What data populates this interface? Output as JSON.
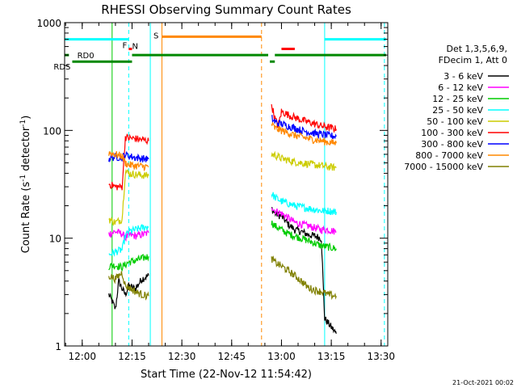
{
  "chart_data": {
    "type": "line",
    "title": "RHESSI Observing Summary Count Rates",
    "xlabel": "Start Time (22-Nov-12 11:54:42)",
    "ylabel_main": "Count Rate (s",
    "ylabel_sup1": "-1",
    "ylabel_mid": " detector",
    "ylabel_sup2": "-1",
    "ylabel_end": ")",
    "yscale": "log",
    "ylim": [
      1,
      1000
    ],
    "xlim": [
      "11:54:42",
      "13:32:00"
    ],
    "x_ticks": [
      "12:00",
      "12:15",
      "12:30",
      "12:45",
      "13:00",
      "13:15",
      "13:30"
    ],
    "y_ticks": [
      "1",
      "10",
      "100",
      "1000"
    ],
    "legend": {
      "placement": "right",
      "header": [
        "Det 1,3,5,6,9,",
        "FDecim 1, Att 0"
      ]
    },
    "series": [
      {
        "name": "3 - 6 keV",
        "color": "#000000",
        "points": [
          [
            "12:08:00",
            3.0
          ],
          [
            "12:09:00",
            2.6
          ],
          [
            "12:10:00",
            2.2
          ],
          [
            "12:11:00",
            4.0
          ],
          [
            "12:12:00",
            3.4
          ],
          [
            "12:13:00",
            3.0
          ],
          [
            "12:14:00",
            3.6
          ],
          [
            "12:16:00",
            3.4
          ],
          [
            "12:18:00",
            4.2
          ],
          [
            "12:20:00",
            4.5
          ],
          [
            "12:57:00",
            19.0
          ],
          [
            "12:58:00",
            17.0
          ],
          [
            "13:00:00",
            16.0
          ],
          [
            "13:02:00",
            13.5
          ],
          [
            "13:04:00",
            12.0
          ],
          [
            "13:06:00",
            11.5
          ],
          [
            "13:08:00",
            10.8
          ],
          [
            "13:10:00",
            10.5
          ],
          [
            "13:12:00",
            10.0
          ],
          [
            "13:13:00",
            1.8
          ],
          [
            "13:15:00",
            1.5
          ],
          [
            "13:16:30",
            1.3
          ]
        ]
      },
      {
        "name": "6 - 12 keV",
        "color": "#ff00ff",
        "points": [
          [
            "12:08:00",
            11.0
          ],
          [
            "12:10:00",
            11.5
          ],
          [
            "12:12:00",
            11.0
          ],
          [
            "12:13:00",
            10.0
          ],
          [
            "12:14:00",
            10.8
          ],
          [
            "12:16:00",
            10.5
          ],
          [
            "12:18:00",
            10.8
          ],
          [
            "12:20:00",
            11.2
          ],
          [
            "12:57:00",
            20.0
          ],
          [
            "12:58:00",
            18.0
          ],
          [
            "13:00:00",
            17.0
          ],
          [
            "13:02:00",
            15.5
          ],
          [
            "13:04:00",
            14.0
          ],
          [
            "13:06:00",
            13.5
          ],
          [
            "13:08:00",
            13.0
          ],
          [
            "13:10:00",
            12.5
          ],
          [
            "13:12:00",
            12.0
          ],
          [
            "13:14:00",
            12.0
          ],
          [
            "13:16:30",
            11.5
          ]
        ]
      },
      {
        "name": "12 - 25 keV",
        "color": "#00cc00",
        "points": [
          [
            "12:08:00",
            5.5
          ],
          [
            "12:10:00",
            5.6
          ],
          [
            "12:12:00",
            5.4
          ],
          [
            "12:14:00",
            6.0
          ],
          [
            "12:16:00",
            6.2
          ],
          [
            "12:18:00",
            6.5
          ],
          [
            "12:20:00",
            6.8
          ],
          [
            "12:57:00",
            14.0
          ],
          [
            "12:58:00",
            13.0
          ],
          [
            "13:00:00",
            12.0
          ],
          [
            "13:02:00",
            11.0
          ],
          [
            "13:04:00",
            10.5
          ],
          [
            "13:06:00",
            10.0
          ],
          [
            "13:08:00",
            9.5
          ],
          [
            "13:10:00",
            9.0
          ],
          [
            "13:12:00",
            8.5
          ],
          [
            "13:14:00",
            8.3
          ],
          [
            "13:16:30",
            8.0
          ]
        ]
      },
      {
        "name": "25 - 50 keV",
        "color": "#00ffff",
        "points": [
          [
            "12:08:00",
            7.0
          ],
          [
            "12:10:00",
            7.5
          ],
          [
            "12:12:00",
            7.8
          ],
          [
            "12:13:00",
            10.5
          ],
          [
            "12:14:00",
            11.5
          ],
          [
            "12:16:00",
            12.0
          ],
          [
            "12:18:00",
            12.5
          ],
          [
            "12:20:00",
            12.8
          ],
          [
            "12:57:00",
            26.0
          ],
          [
            "12:58:00",
            24.0
          ],
          [
            "13:00:00",
            22.0
          ],
          [
            "13:02:00",
            21.0
          ],
          [
            "13:04:00",
            20.0
          ],
          [
            "13:06:00",
            19.5
          ],
          [
            "13:08:00",
            19.0
          ],
          [
            "13:10:00",
            18.5
          ],
          [
            "13:12:00",
            18.0
          ],
          [
            "13:14:00",
            18.0
          ],
          [
            "13:16:30",
            17.5
          ]
        ]
      },
      {
        "name": "50 - 100 keV",
        "color": "#cccc00",
        "points": [
          [
            "12:08:00",
            15.0
          ],
          [
            "12:10:00",
            14.0
          ],
          [
            "12:12:00",
            15.0
          ],
          [
            "12:13:00",
            42.0
          ],
          [
            "12:14:00",
            40.0
          ],
          [
            "12:16:00",
            39.0
          ],
          [
            "12:18:00",
            38.5
          ],
          [
            "12:20:00",
            38.0
          ],
          [
            "12:57:00",
            60.0
          ],
          [
            "12:58:00",
            59.0
          ],
          [
            "13:00:00",
            55.0
          ],
          [
            "13:02:00",
            53.0
          ],
          [
            "13:04:00",
            51.0
          ],
          [
            "13:06:00",
            50.0
          ],
          [
            "13:08:00",
            49.0
          ],
          [
            "13:10:00",
            48.0
          ],
          [
            "13:12:00",
            47.0
          ],
          [
            "13:14:00",
            46.0
          ],
          [
            "13:16:30",
            45.0
          ]
        ]
      },
      {
        "name": "100 - 300 keV",
        "color": "#ff0000",
        "points": [
          [
            "12:08:00",
            32.0
          ],
          [
            "12:10:00",
            30.0
          ],
          [
            "12:12:00",
            30.0
          ],
          [
            "12:13:00",
            87.0
          ],
          [
            "12:14:00",
            85.0
          ],
          [
            "12:16:00",
            84.0
          ],
          [
            "12:18:00",
            82.0
          ],
          [
            "12:20:00",
            80.0
          ],
          [
            "12:57:00",
            175.0
          ],
          [
            "12:58:00",
            130.0
          ],
          [
            "12:59:00",
            110.0
          ],
          [
            "13:00:00",
            150.0
          ],
          [
            "13:02:00",
            140.0
          ],
          [
            "13:04:00",
            132.0
          ],
          [
            "13:06:00",
            125.0
          ],
          [
            "13:08:00",
            120.0
          ],
          [
            "13:10:00",
            115.0
          ],
          [
            "13:12:00",
            110.0
          ],
          [
            "13:14:00",
            107.0
          ],
          [
            "13:16:30",
            103.0
          ]
        ]
      },
      {
        "name": "300 - 800 keV",
        "color": "#0000ff",
        "points": [
          [
            "12:08:00",
            55.0
          ],
          [
            "12:10:00",
            57.0
          ],
          [
            "12:12:00",
            56.0
          ],
          [
            "12:13:00",
            60.0
          ],
          [
            "12:14:00",
            58.0
          ],
          [
            "12:16:00",
            56.0
          ],
          [
            "12:18:00",
            55.0
          ],
          [
            "12:20:00",
            54.0
          ],
          [
            "12:57:00",
            130.0
          ],
          [
            "12:58:00",
            120.0
          ],
          [
            "13:00:00",
            115.0
          ],
          [
            "13:02:00",
            110.0
          ],
          [
            "13:04:00",
            105.0
          ],
          [
            "13:06:00",
            100.0
          ],
          [
            "13:08:00",
            97.0
          ],
          [
            "13:10:00",
            94.0
          ],
          [
            "13:12:00",
            92.0
          ],
          [
            "13:14:00",
            90.0
          ],
          [
            "13:16:30",
            88.0
          ]
        ]
      },
      {
        "name": "800 - 7000 keV",
        "color": "#ff8800",
        "points": [
          [
            "12:08:00",
            62.0
          ],
          [
            "12:10:00",
            60.0
          ],
          [
            "12:12:00",
            58.0
          ],
          [
            "12:13:00",
            50.0
          ],
          [
            "12:14:00",
            48.0
          ],
          [
            "12:16:00",
            47.0
          ],
          [
            "12:18:00",
            46.5
          ],
          [
            "12:20:00",
            46.0
          ],
          [
            "12:57:00",
            115.0
          ],
          [
            "12:58:00",
            105.0
          ],
          [
            "13:00:00",
            100.0
          ],
          [
            "13:02:00",
            95.0
          ],
          [
            "13:04:00",
            90.0
          ],
          [
            "13:06:00",
            87.0
          ],
          [
            "13:08:00",
            84.0
          ],
          [
            "13:10:00",
            82.0
          ],
          [
            "13:12:00",
            80.0
          ],
          [
            "13:14:00",
            78.0
          ],
          [
            "13:16:30",
            76.0
          ]
        ]
      },
      {
        "name": "7000 - 15000 keV",
        "color": "#808000",
        "points": [
          [
            "12:08:00",
            4.5
          ],
          [
            "12:10:00",
            4.2
          ],
          [
            "12:12:00",
            4.8
          ],
          [
            "12:13:00",
            3.6
          ],
          [
            "12:14:00",
            3.5
          ],
          [
            "12:16:00",
            3.2
          ],
          [
            "12:18:00",
            3.0
          ],
          [
            "12:20:00",
            2.9
          ],
          [
            "12:57:00",
            6.5
          ],
          [
            "12:58:00",
            6.0
          ],
          [
            "13:00:00",
            5.5
          ],
          [
            "13:02:00",
            5.0
          ],
          [
            "13:04:00",
            4.5
          ],
          [
            "13:06:00",
            4.0
          ],
          [
            "13:08:00",
            3.5
          ],
          [
            "13:10:00",
            3.3
          ],
          [
            "13:12:00",
            3.2
          ],
          [
            "13:14:00",
            3.0
          ],
          [
            "13:16:30",
            2.9
          ]
        ]
      }
    ],
    "flag_bars": [
      {
        "label": "N",
        "color": "#00ffff",
        "y": 700,
        "segments": [
          [
            "11:54:42",
            "12:14:00"
          ],
          [
            "13:13:00",
            "13:31:30"
          ]
        ]
      },
      {
        "label": "S",
        "color": "#ff8800",
        "y": 740,
        "segments": [
          [
            "12:24:00",
            "12:54:00"
          ]
        ]
      },
      {
        "label": "F",
        "color": "#ff0000",
        "y": 570,
        "segments": [
          [
            "12:14:00",
            "12:15:00"
          ],
          [
            "13:00:00",
            "13:04:00"
          ]
        ]
      },
      {
        "label": "RD0",
        "color": "#008800",
        "y": 500,
        "segments": [
          [
            "11:54:42",
            "11:56:00"
          ],
          [
            "12:15:00",
            "12:56:00"
          ],
          [
            "12:58:00",
            "13:31:30"
          ]
        ]
      },
      {
        "label": "RDS",
        "color": "#008800",
        "y": 435,
        "segments": [
          [
            "11:57:00",
            "12:15:00"
          ],
          [
            "12:56:30",
            "12:58:00"
          ]
        ]
      }
    ],
    "markers": [
      {
        "time": "12:14:00",
        "color": "#00ffff",
        "dashed": true
      },
      {
        "time": "12:20:30",
        "color": "#00ffff",
        "dashed": false
      },
      {
        "time": "12:24:00",
        "color": "#ff8800",
        "dashed": false
      },
      {
        "time": "12:54:00",
        "color": "#ff8800",
        "dashed": true
      },
      {
        "time": "13:13:00",
        "color": "#00ffff",
        "dashed": false
      },
      {
        "time": "13:31:00",
        "color": "#00ffff",
        "dashed": true
      },
      {
        "time": "11:54:42",
        "color": "#00ffff",
        "dashed": false
      },
      {
        "time": "12:09:00",
        "color": "#00cc00",
        "dashed": false
      }
    ],
    "footer": "21-Oct-2021 00:02"
  }
}
